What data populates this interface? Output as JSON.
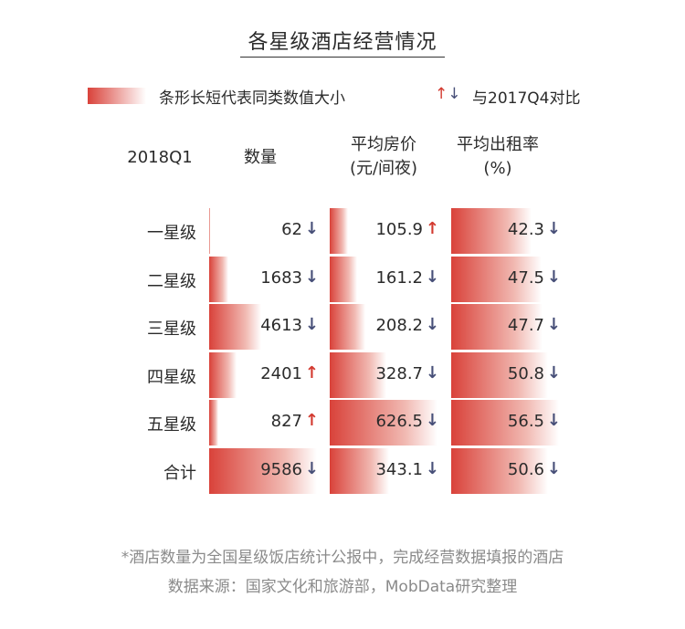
{
  "title": "各星级酒店经营情况",
  "legend": {
    "bar_text": "条形长短代表同类数值大小",
    "arrows": "↑↓",
    "compare_text": "与2017Q4对比"
  },
  "headers": {
    "period": "2018Q1",
    "count": "数量",
    "price_line1": "平均房价",
    "price_line2": "(元/间夜)",
    "occ_line1": "平均出租率",
    "occ_line2": "(%)"
  },
  "rows": [
    {
      "label": "一星级",
      "count": "62",
      "count_dir": "down",
      "price": "105.9",
      "price_dir": "up",
      "occ": "42.3",
      "occ_dir": "down"
    },
    {
      "label": "二星级",
      "count": "1683",
      "count_dir": "down",
      "price": "161.2",
      "price_dir": "down",
      "occ": "47.5",
      "occ_dir": "down"
    },
    {
      "label": "三星级",
      "count": "4613",
      "count_dir": "down",
      "price": "208.2",
      "price_dir": "down",
      "occ": "47.7",
      "occ_dir": "down"
    },
    {
      "label": "四星级",
      "count": "2401",
      "count_dir": "up",
      "price": "328.7",
      "price_dir": "down",
      "occ": "50.8",
      "occ_dir": "down"
    },
    {
      "label": "五星级",
      "count": "827",
      "count_dir": "up",
      "price": "626.5",
      "price_dir": "down",
      "occ": "56.5",
      "occ_dir": "down"
    },
    {
      "label": "合计",
      "count": "9586",
      "count_dir": "down",
      "price": "343.1",
      "price_dir": "down",
      "occ": "50.6",
      "occ_dir": "down"
    }
  ],
  "footnote1": "*酒店数量为全国星级饭店统计公报中，完成经营数据填报的酒店",
  "footnote2": "数据来源：国家文化和旅游部，MobData研究整理",
  "colors": {
    "bar": "#d9423a",
    "up": "#d33a30",
    "down": "#474f78"
  },
  "chart_data": {
    "type": "table",
    "title": "各星级酒店经营情况",
    "period": "2018Q1",
    "comparison": "与2017Q4对比",
    "categories": [
      "一星级",
      "二星级",
      "三星级",
      "四星级",
      "五星级",
      "合计"
    ],
    "series": [
      {
        "name": "数量",
        "values": [
          62,
          1683,
          4613,
          2401,
          827,
          9586
        ],
        "change_vs_2017Q4": [
          "down",
          "down",
          "down",
          "up",
          "up",
          "down"
        ]
      },
      {
        "name": "平均房价(元/间夜)",
        "values": [
          105.9,
          161.2,
          208.2,
          328.7,
          626.5,
          343.1
        ],
        "change_vs_2017Q4": [
          "up",
          "down",
          "down",
          "down",
          "down",
          "down"
        ]
      },
      {
        "name": "平均出租率(%)",
        "values": [
          42.3,
          47.5,
          47.7,
          50.8,
          56.5,
          50.6
        ],
        "change_vs_2017Q4": [
          "down",
          "down",
          "down",
          "down",
          "down",
          "down"
        ]
      }
    ]
  }
}
